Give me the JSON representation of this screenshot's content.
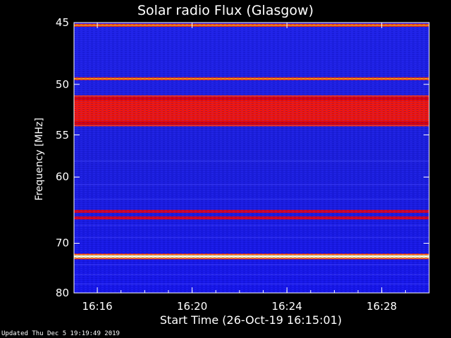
{
  "chart_data": {
    "type": "heatmap",
    "title": "Solar radio Flux (Glasgow)",
    "xlabel": "Start Time (26-Oct-19 16:15:01)",
    "ylabel": "Frequency [MHz]",
    "x_ticks": [
      "16:16",
      "16:20",
      "16:24",
      "16:28"
    ],
    "y_ticks": [
      45,
      50,
      55,
      60,
      70,
      80
    ],
    "xlim": [
      "16:15:01",
      "16:30:00"
    ],
    "ylim": [
      80,
      45
    ],
    "y_scale": "reciprocal",
    "colormap": "blue-red-yellow-white",
    "colors": {
      "background": "#000000",
      "low": "#1a1aff",
      "mid": "#e80000",
      "high": "#ffffcc"
    },
    "bands_mhz": [
      {
        "center": 45.2,
        "intensity": "high"
      },
      {
        "center": 49.5,
        "intensity": "high"
      },
      {
        "center": 52.5,
        "intensity": "mid"
      },
      {
        "center": 64.8,
        "intensity": "mid"
      },
      {
        "center": 65.8,
        "intensity": "mid"
      },
      {
        "center": 72.4,
        "intensity": "high"
      }
    ]
  },
  "footer": {
    "updated": "Updated Thu Dec  5 19:19:49 2019"
  }
}
